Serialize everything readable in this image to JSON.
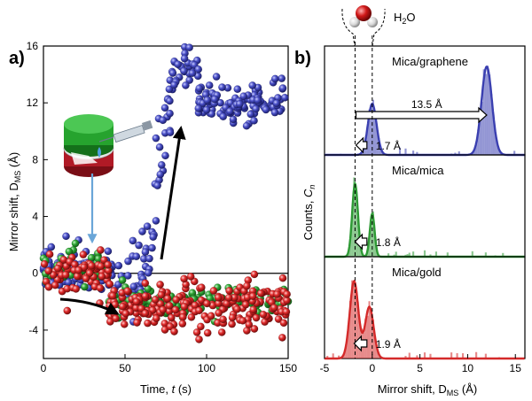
{
  "chart_data": [
    {
      "panel_label": "a)",
      "type": "scatter",
      "title": "",
      "xlabel": "Time, t (s)",
      "ylabel": "Mirror shift, D_MS (Å)",
      "ylabel_main": "Mirror shift, D",
      "ylabel_sub": "MS",
      "ylabel_unit": " (Å)",
      "xlabel_main": "Time, ",
      "xlabel_italic": "t",
      "xlabel_unit": " (s)",
      "xlim": [
        0,
        150
      ],
      "ylim": [
        -6,
        16
      ],
      "xticks": [
        0,
        50,
        100,
        150
      ],
      "yticks": [
        -4,
        0,
        4,
        8,
        12,
        16
      ],
      "reference_line_y": 0,
      "series": [
        {
          "name": "mica/graphene",
          "color": "#3a3fb0",
          "segments": [
            {
              "t_start": 0,
              "t_end": 44,
              "mean": 0.3,
              "spread": 0.7,
              "count": 90
            },
            {
              "t_start": 44,
              "t_end": 62,
              "mean": -1.0,
              "spread": 1.6,
              "count": 35
            },
            {
              "t_start": 62,
              "t_end": 80,
              "mean": 6.5,
              "spread": 4.5,
              "count": 40
            },
            {
              "t_start": 80,
              "t_end": 95,
              "mean": 14.5,
              "spread": 0.8,
              "count": 30
            },
            {
              "t_start": 95,
              "t_end": 150,
              "mean": 12.0,
              "spread": 0.6,
              "count": 120
            }
          ]
        },
        {
          "name": "mica/mica",
          "color": "#2e9a35",
          "segments": [
            {
              "t_start": 0,
              "t_end": 40,
              "mean": 0.4,
              "spread": 0.6,
              "count": 40
            },
            {
              "t_start": 40,
              "t_end": 150,
              "mean": -2.0,
              "spread": 0.5,
              "count": 120
            }
          ]
        },
        {
          "name": "mica/gold",
          "color": "#d42a2a",
          "segments": [
            {
              "t_start": 0,
              "t_end": 40,
              "mean": 0.2,
              "spread": 0.7,
              "count": 70
            },
            {
              "t_start": 40,
              "t_end": 150,
              "mean": -2.3,
              "spread": 0.9,
              "count": 220
            }
          ]
        }
      ]
    },
    {
      "panel_label": "b)",
      "type": "histogram",
      "title": "",
      "xlabel": "Mirror shift, D_MS (Å)",
      "xlabel_main": "Mirror shift, D",
      "xlabel_sub": "MS",
      "xlabel_unit": " (Å)",
      "ylabel": "Counts, C_n",
      "ylabel_main": "Counts, ",
      "ylabel_italic": "C",
      "ylabel_sub": "n",
      "xlim": [
        -5,
        16
      ],
      "xticks": [
        -5,
        0,
        5,
        10,
        15
      ],
      "reference_lines_x": [
        -1.8,
        0
      ],
      "molecule_label": "H2O",
      "subpanels": [
        {
          "name": "Mica/graphene",
          "color": "#3a3fb0",
          "peaks": [
            {
              "center": 0.0,
              "height": 0.55,
              "width": 0.45
            },
            {
              "center": 12.0,
              "height": 0.95,
              "width": 0.55
            }
          ],
          "shift_label": "1.7 Å",
          "span_label": "13.5 Å"
        },
        {
          "name": "Mica/mica",
          "color": "#2e9a35",
          "peaks": [
            {
              "center": -1.8,
              "height": 0.85,
              "width": 0.3
            },
            {
              "center": 0.0,
              "height": 0.5,
              "width": 0.25
            }
          ],
          "shift_label": "1.8 Å"
        },
        {
          "name": "Mica/gold",
          "color": "#d42a2a",
          "peaks": [
            {
              "center": -1.9,
              "height": 0.9,
              "width": 0.45
            },
            {
              "center": -0.3,
              "height": 0.6,
              "width": 0.45
            }
          ],
          "shift_label": "1.9 Å"
        }
      ]
    }
  ]
}
